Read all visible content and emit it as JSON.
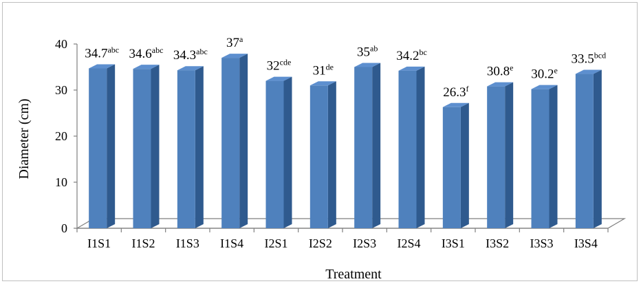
{
  "chart_data": {
    "type": "bar",
    "style": "3d-column",
    "xlabel": "Treatment",
    "ylabel": "Diameter (cm)",
    "ylim": [
      0,
      40
    ],
    "yticks": [
      0,
      10,
      20,
      30,
      40
    ],
    "grid": false,
    "legend": "none",
    "categories": [
      "I1S1",
      "I1S2",
      "I1S3",
      "I1S4",
      "I2S1",
      "I2S2",
      "I2S3",
      "I2S4",
      "I3S1",
      "I3S2",
      "I3S3",
      "I3S4"
    ],
    "values": [
      34.7,
      34.6,
      34.3,
      37,
      32,
      31,
      35,
      34.2,
      26.3,
      30.8,
      30.2,
      33.5
    ],
    "labels": [
      "34.7",
      "34.6",
      "34.3",
      "37",
      "32",
      "31",
      "35",
      "34.2",
      "26.3",
      "30.8",
      "30.2",
      "33.5"
    ],
    "significance_letters": [
      "abc",
      "abc",
      "abc",
      "a",
      "cde",
      "de",
      "ab",
      "bc",
      "f",
      "e",
      "e",
      "bcd"
    ],
    "colors": {
      "bar_front": "#4f81bd",
      "bar_side": "#2f5a8e",
      "bar_top": "#5d8fcf",
      "axis": "#7f7f7f"
    }
  }
}
